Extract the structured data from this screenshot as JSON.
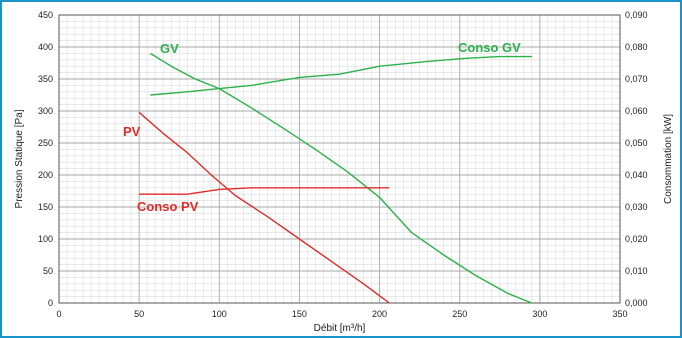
{
  "chart_data": {
    "type": "line",
    "title": "",
    "xlabel": "Débit [m³/h]",
    "ylabel_left": "Pression Statique [Pa]",
    "ylabel_right": "Consommation [kW]",
    "xlim": [
      0,
      350
    ],
    "ylim_left": [
      0,
      450
    ],
    "ylim_right": [
      0,
      0.09
    ],
    "x_ticks": [
      "0",
      "50",
      "100",
      "150",
      "200",
      "250",
      "300",
      "350"
    ],
    "y_ticks_left": [
      "0",
      "50",
      "100",
      "150",
      "200",
      "250",
      "300",
      "350",
      "400",
      "450"
    ],
    "y_ticks_right": [
      "0,000",
      "0,010",
      "0,020",
      "0,030",
      "0,040",
      "0,050",
      "0,060",
      "0,070",
      "0,080",
      "0,090"
    ],
    "grid": true,
    "series": [
      {
        "name": "GV",
        "axis": "left",
        "color": "#2ab24a",
        "x": [
          57,
          70,
          85,
          100,
          120,
          140,
          160,
          180,
          200,
          220,
          240,
          260,
          280,
          295
        ],
        "y": [
          390,
          370,
          350,
          335,
          305,
          273,
          240,
          205,
          165,
          110,
          75,
          43,
          15,
          0
        ]
      },
      {
        "name": "Conso GV",
        "axis": "right",
        "color": "#2ab24a",
        "x": [
          57,
          80,
          100,
          120,
          150,
          175,
          200,
          230,
          255,
          275,
          295
        ],
        "y": [
          0.065,
          0.066,
          0.067,
          0.068,
          0.0705,
          0.0715,
          0.074,
          0.0755,
          0.0765,
          0.077,
          0.077
        ]
      },
      {
        "name": "PV",
        "axis": "left",
        "color": "#e02b2b",
        "x": [
          50,
          65,
          80,
          95,
          110,
          130,
          150,
          170,
          190,
          206
        ],
        "y": [
          298,
          265,
          235,
          200,
          168,
          135,
          100,
          65,
          30,
          0
        ]
      },
      {
        "name": "Conso PV",
        "axis": "right",
        "color": "#e02b2b",
        "x": [
          50,
          80,
          100,
          120,
          150,
          180,
          206
        ],
        "y": [
          0.034,
          0.034,
          0.0355,
          0.036,
          0.036,
          0.036,
          0.036
        ]
      }
    ]
  }
}
